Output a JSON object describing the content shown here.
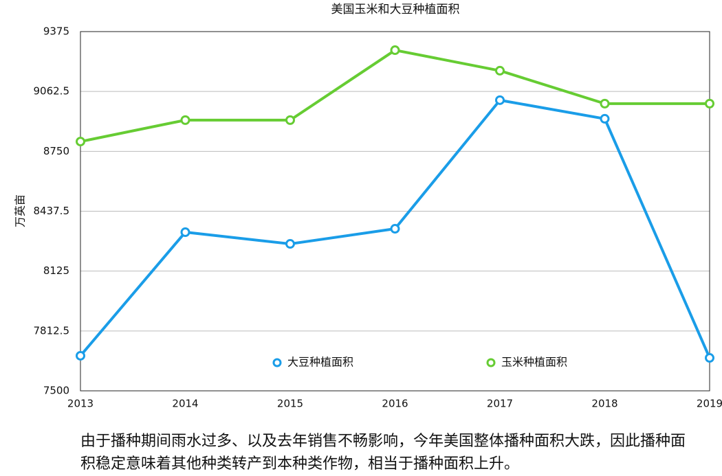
{
  "chart_data": {
    "type": "line",
    "title": "美国玉米和大豆种植面积",
    "y_label": "万英亩",
    "categories": [
      "2013",
      "2014",
      "2015",
      "2016",
      "2017",
      "2018",
      "2019"
    ],
    "series": [
      {
        "name": "大豆种植面积",
        "color": "#1a9de8",
        "values": [
          7683,
          8328,
          8267,
          8346,
          9017,
          8920,
          7672
        ]
      },
      {
        "name": "玉米种植面积",
        "color": "#66cc33",
        "values": [
          8801,
          8913,
          8913,
          9278,
          9171,
          8999,
          8999
        ]
      }
    ],
    "ylim": [
      7500,
      9375
    ],
    "yticks": [
      7500,
      7812.5,
      8125,
      8437.5,
      8750,
      9062.5,
      9375
    ],
    "grid": true
  },
  "caption": "由于播种期间雨水过多、以及去年销售不畅影响，今年美国整体播种面积大跌，因此播种面积稳定意味着其他种类转产到本种类作物，相当于播种面积上升。"
}
